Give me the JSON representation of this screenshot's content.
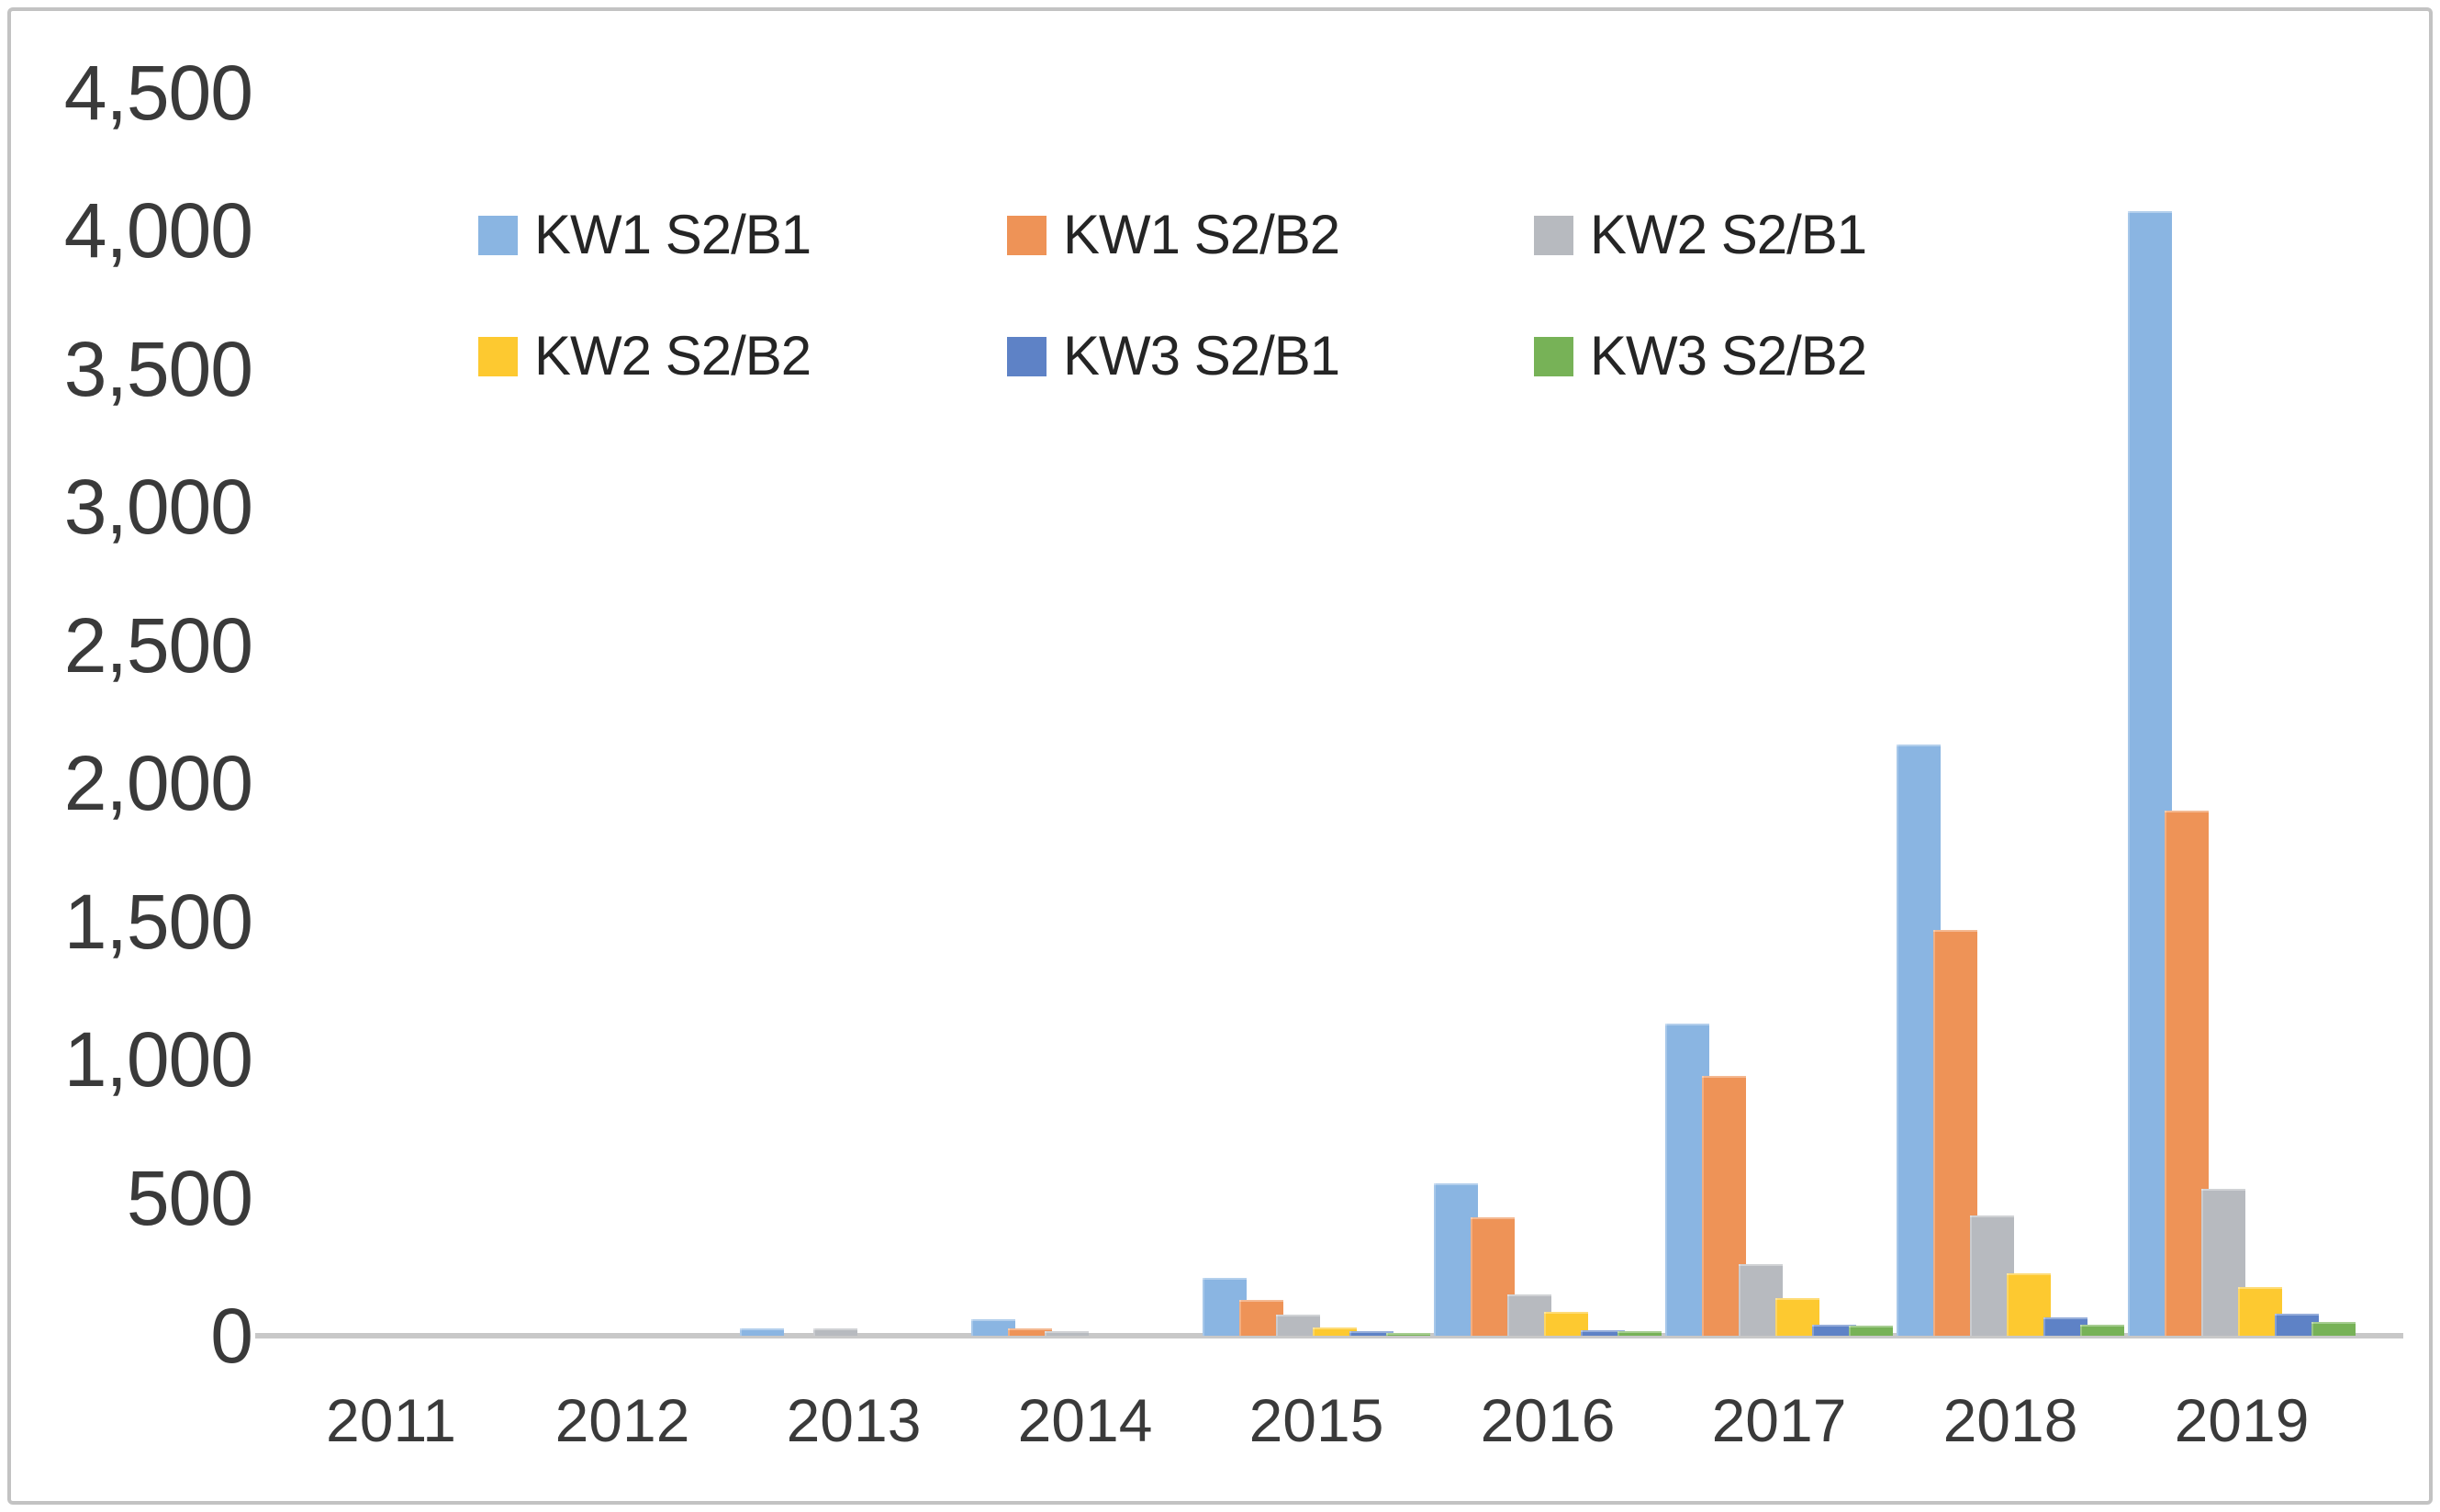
{
  "chart_data": {
    "type": "bar",
    "title": "",
    "xlabel": "",
    "ylabel": "",
    "categories": [
      "2011",
      "2012",
      "2013",
      "2014",
      "2015",
      "2016",
      "2017",
      "2018",
      "2019"
    ],
    "series": [
      {
        "name": "KW1 S2/B1",
        "color": "#8ab5e2",
        "values": [
          0,
          0,
          25,
          60,
          210,
          550,
          1130,
          2140,
          4070
        ]
      },
      {
        "name": "KW1 S2/B2",
        "color": "#ee9357",
        "values": [
          0,
          0,
          0,
          25,
          130,
          430,
          940,
          1470,
          1900
        ]
      },
      {
        "name": "KW2 S2/B1",
        "color": "#b7babf",
        "values": [
          0,
          0,
          25,
          15,
          75,
          150,
          260,
          435,
          530
        ]
      },
      {
        "name": "KW2 S2/B2",
        "color": "#fdc930",
        "values": [
          0,
          0,
          0,
          0,
          30,
          85,
          135,
          225,
          175
        ]
      },
      {
        "name": "KW3 S2/B1",
        "color": "#5e82c6",
        "values": [
          0,
          0,
          0,
          0,
          15,
          20,
          40,
          65,
          80
        ]
      },
      {
        "name": "KW3 S2/B2",
        "color": "#77b257",
        "values": [
          0,
          0,
          0,
          0,
          10,
          15,
          35,
          40,
          50
        ]
      }
    ],
    "y_ticks": [
      {
        "value": 0,
        "label": "0"
      },
      {
        "value": 500,
        "label": "500"
      },
      {
        "value": 1000,
        "label": "1,000"
      },
      {
        "value": 1500,
        "label": "1,500"
      },
      {
        "value": 2000,
        "label": "2,000"
      },
      {
        "value": 2500,
        "label": "2,500"
      },
      {
        "value": 3000,
        "label": "3,000"
      },
      {
        "value": 3500,
        "label": "3,500"
      },
      {
        "value": 4000,
        "label": "4,000"
      },
      {
        "value": 4500,
        "label": "4,500"
      }
    ],
    "ylim": [
      0,
      4500
    ],
    "grid": false,
    "legend_position": "top-inside",
    "legend_rows": 2,
    "axis_line_color": "#c8c8c8"
  }
}
